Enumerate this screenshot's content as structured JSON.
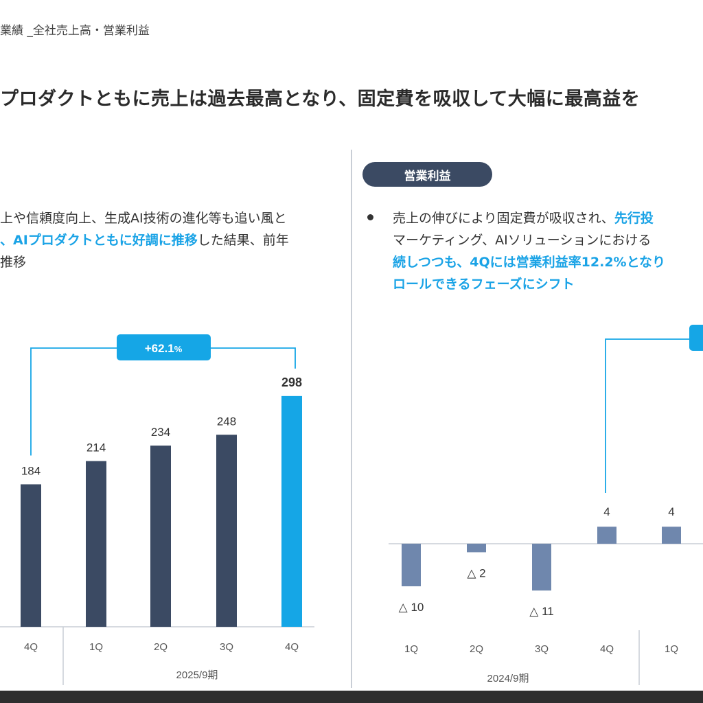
{
  "header": {
    "breadcrumb": "業績 _全社売上高・営業利益",
    "headline": "プロダクトともに売上は過去最高となり、固定費を吸収して大幅に最高益を"
  },
  "left_panel": {
    "lines": [
      [
        {
          "t": "上や信頼度向上、生成AI技術の進化等も追い風と",
          "hl": false
        }
      ],
      [
        {
          "t": "、AIプロダクトともに好調に推移",
          "hl": true
        },
        {
          "t": "した結果、前年",
          "hl": false
        }
      ],
      [
        {
          "t": "推移",
          "hl": false
        }
      ]
    ]
  },
  "right_panel": {
    "title": "営業利益",
    "lines": [
      [
        {
          "t": "売上の伸びにより固定費が吸収され、",
          "hl": false
        },
        {
          "t": "先行投",
          "hl": true
        }
      ],
      [
        {
          "t": "マーケティング、AIソリューションにおける",
          "hl": false
        }
      ],
      [
        {
          "t": "続しつつも、4Qには営業利益率12.2%となり",
          "hl": true
        }
      ],
      [
        {
          "t": "ロールできるフェーズにシフト",
          "hl": true
        }
      ]
    ]
  },
  "chart_data": [
    {
      "type": "bar",
      "name": "売上高",
      "periods": [
        {
          "label": "",
          "quarters": [
            "4Q"
          ]
        },
        {
          "label": "2025/9期",
          "quarters": [
            "1Q",
            "2Q",
            "3Q",
            "4Q"
          ]
        }
      ],
      "categories": [
        "4Q",
        "1Q",
        "2Q",
        "3Q",
        "4Q"
      ],
      "values": [
        184,
        214,
        234,
        248,
        298
      ],
      "value_labels": [
        "184",
        "214",
        "234",
        "248",
        "298"
      ],
      "bar_colors": [
        "#3b4a63",
        "#3b4a63",
        "#3b4a63",
        "#3b4a63",
        "#15a6e6"
      ],
      "highlight_index": 4,
      "growth_callout": {
        "from_index": 0,
        "to_index": 4,
        "value": "+62.1",
        "unit": "%"
      }
    },
    {
      "type": "bar",
      "name": "営業利益",
      "periods": [
        {
          "label": "2024/9期",
          "quarters": [
            "1Q",
            "2Q",
            "3Q",
            "4Q"
          ]
        },
        {
          "label": "",
          "quarters": [
            "1Q"
          ]
        }
      ],
      "categories": [
        "1Q",
        "2Q",
        "3Q",
        "4Q",
        "1Q"
      ],
      "values": [
        -10,
        -2,
        -11,
        4,
        4
      ],
      "value_labels": [
        "△ 10",
        "△ 2",
        "△ 11",
        "4",
        "4"
      ],
      "bar_color": "#6f87ad"
    }
  ],
  "colors": {
    "dark_navy": "#3b4a63",
    "accent_blue": "#15a6e6",
    "profit_bar": "#6f87ad"
  }
}
